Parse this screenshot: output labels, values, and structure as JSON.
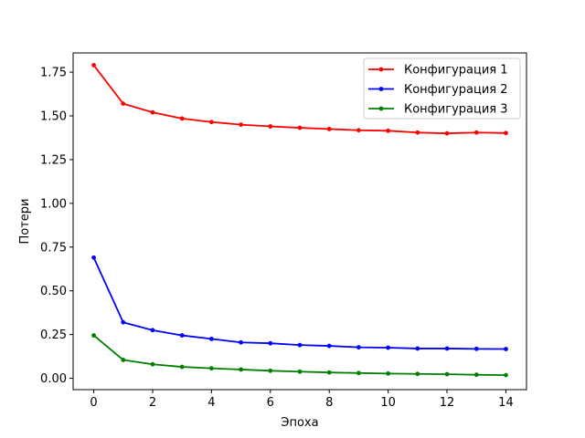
{
  "chart_data": {
    "type": "line",
    "title": "",
    "xlabel": "Эпоха",
    "ylabel": "Потери",
    "x": [
      0,
      1,
      2,
      3,
      4,
      5,
      6,
      7,
      8,
      9,
      10,
      11,
      12,
      13,
      14
    ],
    "xlim": [
      -0.7,
      14.7
    ],
    "ylim": [
      -0.065,
      1.86
    ],
    "xticks": [
      0,
      2,
      4,
      6,
      8,
      10,
      12,
      14
    ],
    "xtick_labels": [
      "0",
      "2",
      "4",
      "6",
      "8",
      "10",
      "12",
      "14"
    ],
    "yticks": [
      0.0,
      0.25,
      0.5,
      0.75,
      1.0,
      1.25,
      1.5,
      1.75
    ],
    "ytick_labels": [
      "0.00",
      "0.25",
      "0.50",
      "0.75",
      "1.00",
      "1.25",
      "1.50",
      "1.75"
    ],
    "grid": false,
    "legend_position": "top-right",
    "series": [
      {
        "name": "Конфигурация 1",
        "color": "#ff0000",
        "values": [
          1.79,
          1.57,
          1.52,
          1.485,
          1.465,
          1.45,
          1.44,
          1.432,
          1.425,
          1.418,
          1.415,
          1.405,
          1.4,
          1.405,
          1.402
        ]
      },
      {
        "name": "Конфигурация 2",
        "color": "#0000ff",
        "values": [
          0.69,
          0.32,
          0.275,
          0.245,
          0.225,
          0.205,
          0.2,
          0.19,
          0.185,
          0.177,
          0.175,
          0.17,
          0.17,
          0.168,
          0.167
        ]
      },
      {
        "name": "Конфигурация 3",
        "color": "#008000",
        "values": [
          0.245,
          0.105,
          0.08,
          0.065,
          0.057,
          0.05,
          0.043,
          0.038,
          0.033,
          0.03,
          0.027,
          0.025,
          0.023,
          0.02,
          0.018
        ]
      }
    ]
  }
}
